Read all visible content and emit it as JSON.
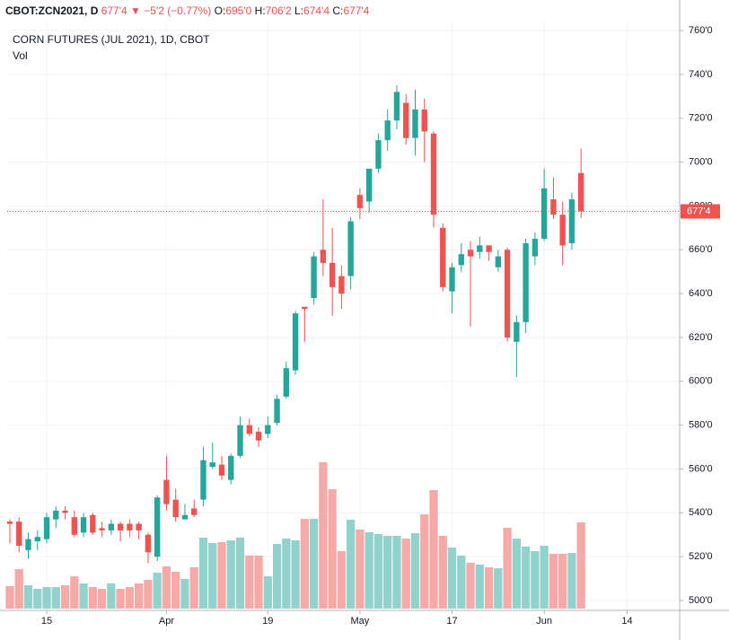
{
  "header": {
    "symbol": "CBOT:ZCN2021, D",
    "arrow": "▼",
    "change": "−5'2 (−0.77%)",
    "o_key": "O:",
    "o": "695'0",
    "h_key": "H:",
    "h": "706'2",
    "l_key": "L:",
    "l": "674'4",
    "c_key": "C:"
  },
  "chart_data": {
    "type": "candlestick",
    "title": "CORN FUTURES (JUL 2021), 1D, CBOT",
    "volume_label": "Vol",
    "up_color": "#26a69a",
    "down_color": "#ef5350",
    "up_volume_color": "#92d2cc",
    "down_volume_color": "#f7a9a7",
    "open": [
      536,
      536,
      523,
      527,
      528,
      537,
      541,
      538,
      531,
      539,
      533,
      532,
      535,
      535,
      535,
      530,
      520,
      555,
      546,
      537,
      542,
      546,
      561,
      562,
      555,
      566,
      580,
      577,
      576,
      581,
      593,
      605,
      634,
      638,
      660,
      654,
      648,
      648,
      685,
      682,
      697,
      710,
      719,
      727,
      711,
      724,
      713,
      670,
      641,
      653,
      660,
      659,
      662,
      652,
      660,
      618,
      627,
      657,
      665,
      683,
      676,
      663,
      695
    ],
    "high": [
      537,
      538,
      531,
      532,
      540,
      543,
      543,
      541,
      540,
      540,
      536,
      537,
      536,
      537,
      536,
      531,
      548,
      566,
      551,
      544,
      546,
      570,
      572,
      566,
      567,
      584,
      583,
      579,
      584,
      594,
      609,
      632,
      634,
      659,
      683,
      670,
      653,
      675,
      688,
      697,
      713,
      724,
      735,
      731,
      733,
      729,
      714,
      672,
      654,
      663,
      664,
      666,
      662,
      660,
      661,
      630,
      665,
      668,
      697,
      693,
      682,
      686,
      706.25
    ],
    "low": [
      526,
      522,
      519,
      523,
      526,
      533,
      537,
      529,
      529,
      530,
      529,
      530,
      527,
      529,
      528,
      517,
      518,
      541,
      536,
      537,
      538,
      543,
      560,
      555,
      553,
      565,
      575,
      570,
      574,
      580,
      592,
      603,
      618,
      635,
      648,
      630,
      633,
      642,
      674,
      677,
      695,
      705,
      715,
      708,
      703,
      700,
      670,
      641,
      631,
      650,
      625,
      656,
      655,
      650,
      618,
      602,
      622,
      653,
      664,
      674,
      653,
      660,
      674.5
    ],
    "close": [
      535,
      525,
      528,
      529,
      538,
      541,
      540,
      530,
      538,
      531,
      532,
      535,
      532,
      532,
      532,
      522,
      547,
      544,
      538,
      539,
      539,
      564,
      563,
      557,
      566,
      580,
      576,
      573,
      580,
      592,
      606,
      631,
      633,
      657,
      654,
      643,
      640,
      673,
      679,
      697,
      710,
      719,
      732,
      711,
      724,
      714,
      676,
      643,
      652,
      658,
      657,
      662,
      659,
      657,
      620,
      627,
      663,
      665,
      688,
      676,
      662,
      683,
      677.5
    ],
    "volume": [
      25,
      44,
      26,
      22,
      24,
      24,
      26,
      36,
      28,
      24,
      22,
      28,
      22,
      24,
      28,
      32,
      40,
      47,
      41,
      33,
      46,
      79,
      73,
      74,
      76,
      79,
      59,
      59,
      36,
      72,
      78,
      76,
      100,
      100,
      163,
      133,
      64,
      99,
      88,
      85,
      83,
      81,
      81,
      78,
      84,
      105,
      132,
      81,
      68,
      59,
      51,
      49,
      46,
      45,
      90,
      78,
      69,
      64,
      70,
      61,
      61,
      62,
      96
    ],
    "last_price": {
      "value": 677.5,
      "label": "677'4"
    },
    "ylim": [
      495.5,
      763.7
    ],
    "yticks": [
      {
        "value": 500,
        "label": "500'0"
      },
      {
        "value": 520,
        "label": "520'0"
      },
      {
        "value": 540,
        "label": "540'0"
      },
      {
        "value": 560,
        "label": "560'0"
      },
      {
        "value": 580,
        "label": "580'0"
      },
      {
        "value": 600,
        "label": "600'0"
      },
      {
        "value": 620,
        "label": "620'0"
      },
      {
        "value": 640,
        "label": "640'0"
      },
      {
        "value": 660,
        "label": "660'0"
      },
      {
        "value": 680,
        "label": "680'0"
      },
      {
        "value": 700,
        "label": "700'0"
      },
      {
        "value": 720,
        "label": "720'0"
      },
      {
        "value": 740,
        "label": "740'0"
      },
      {
        "value": 760,
        "label": "760'0"
      }
    ],
    "xlim": [
      -0.29,
      72.7
    ],
    "xticks": [
      {
        "value": 4,
        "label": "15"
      },
      {
        "value": 17,
        "label": "Apr"
      },
      {
        "value": 28,
        "label": "19"
      },
      {
        "value": 38,
        "label": "May"
      },
      {
        "value": 48,
        "label": "17"
      },
      {
        "value": 58,
        "label": "Jun"
      },
      {
        "value": 67,
        "label": "14"
      }
    ],
    "grid": true
  }
}
